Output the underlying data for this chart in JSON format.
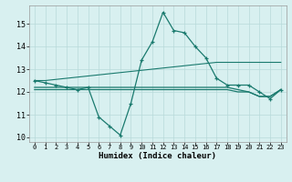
{
  "x": [
    0,
    1,
    2,
    3,
    4,
    5,
    6,
    7,
    8,
    9,
    10,
    11,
    12,
    13,
    14,
    15,
    16,
    17,
    18,
    19,
    20,
    21,
    22,
    23
  ],
  "main_line": [
    12.5,
    12.4,
    12.3,
    12.2,
    12.1,
    12.2,
    10.9,
    10.5,
    10.1,
    11.5,
    13.4,
    14.2,
    15.5,
    14.7,
    14.6,
    14.0,
    13.5,
    12.6,
    12.3,
    12.3,
    12.3,
    12.0,
    11.7,
    12.1
  ],
  "rising_line": [
    12.5,
    12.5,
    12.55,
    12.6,
    12.65,
    12.7,
    12.75,
    12.8,
    12.85,
    12.9,
    12.95,
    13.0,
    13.05,
    13.1,
    13.15,
    13.2,
    13.25,
    13.3,
    13.3,
    13.3,
    13.3,
    13.3,
    13.3,
    13.3
  ],
  "flat_line1": [
    12.2,
    12.2,
    12.2,
    12.2,
    12.2,
    12.2,
    12.2,
    12.2,
    12.2,
    12.2,
    12.2,
    12.2,
    12.2,
    12.2,
    12.2,
    12.2,
    12.2,
    12.2,
    12.2,
    12.1,
    12.0,
    11.8,
    11.8,
    12.1
  ],
  "flat_line2": [
    12.1,
    12.1,
    12.1,
    12.1,
    12.1,
    12.1,
    12.1,
    12.1,
    12.1,
    12.1,
    12.1,
    12.1,
    12.1,
    12.1,
    12.1,
    12.1,
    12.1,
    12.1,
    12.1,
    12.0,
    12.0,
    11.8,
    11.8,
    12.1
  ],
  "color": "#1a7a6e",
  "bg_color": "#d8f0f0",
  "grid_color": "#b8dada",
  "xlabel": "Humidex (Indice chaleur)",
  "ylim": [
    9.8,
    15.8
  ],
  "xlim": [
    -0.5,
    23.5
  ],
  "yticks": [
    10,
    11,
    12,
    13,
    14,
    15
  ],
  "xticks": [
    0,
    1,
    2,
    3,
    4,
    5,
    6,
    7,
    8,
    9,
    10,
    11,
    12,
    13,
    14,
    15,
    16,
    17,
    18,
    19,
    20,
    21,
    22,
    23
  ]
}
